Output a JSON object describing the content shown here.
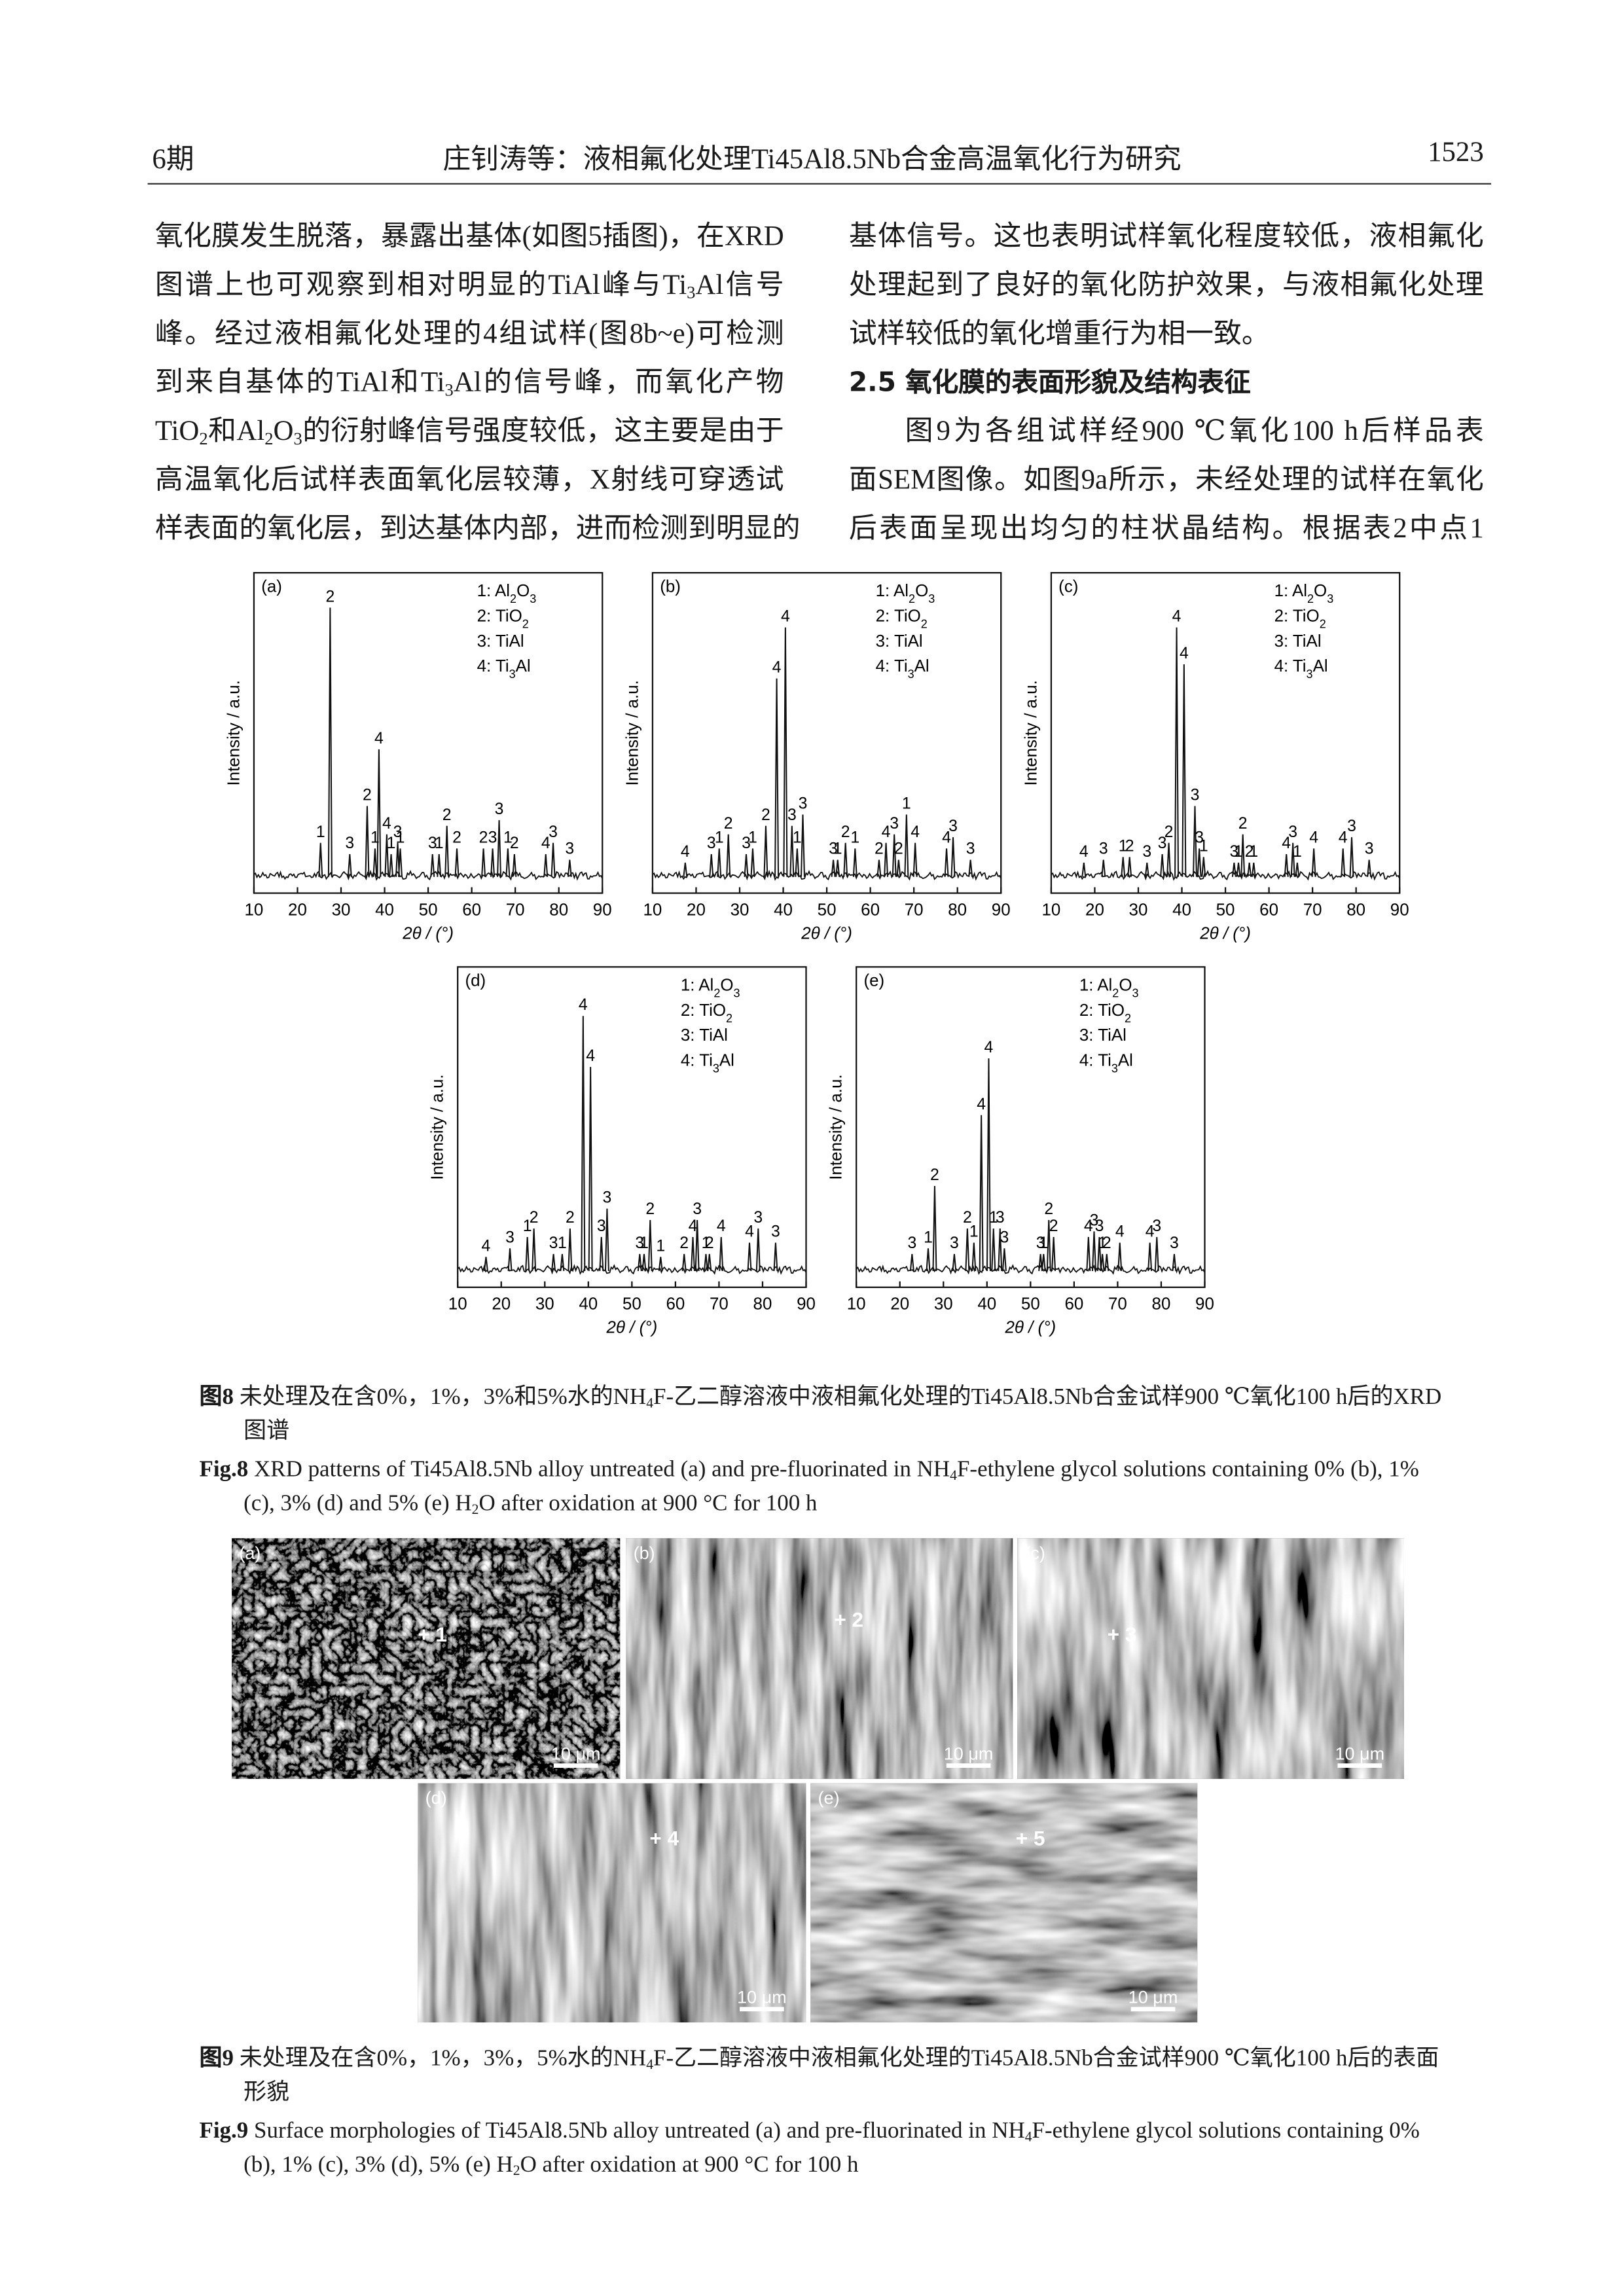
{
  "header": {
    "issue": "6期",
    "running_title": "庄钊涛等：液相氟化处理Ti45Al8.5Nb合金高温氧化行为研究",
    "page": "1523"
  },
  "body": {
    "left_lines": [
      "氧化膜发生脱落，暴露出基体(如图5插图)，在XRD",
      "图谱上也可观察到相对明显的TiAl峰与Ti3Al信号",
      "峰。经过液相氟化处理的4组试样(图8b~e)可检测",
      "到来自基体的TiAl和Ti3Al的信号峰，而氧化产物",
      "TiO2和Al2O3的衍射峰信号强度较低，这主要是由于",
      "高温氧化后试样表面氧化层较薄，X射线可穿透试",
      "样表面的氧化层，到达基体内部，进而检测到明显的"
    ],
    "right_lines_before": [
      "基体信号。这也表明试样氧化程度较低，液相氟化",
      "处理起到了良好的氧化防护效果，与液相氟化处理",
      "试样较低的氧化增重行为相一致。"
    ],
    "heading": "2.5 氧化膜的表面形貌及结构表征",
    "right_lines_after": [
      "图9为各组试样经900 ℃氧化100 h后样品表",
      "面SEM图像。如图9a所示，未经处理的试样在氧化",
      "后表面呈现出均匀的柱状晶结构。根据表2中点1"
    ]
  },
  "chart_data": [
    {
      "type": "line",
      "panel_label": "(a)",
      "legend": [
        "1: Al2O3",
        "2: TiO2",
        "3: TiAl",
        "4: Ti3Al"
      ],
      "ylabel": "Intensity / a.u.",
      "xlabel": "2θ / (°)",
      "xlim": [
        10,
        90
      ],
      "xticks": [
        10,
        20,
        30,
        40,
        50,
        60,
        70,
        80,
        90
      ],
      "ylim": [
        0,
        100
      ],
      "x": [
        25.3,
        27.5,
        32,
        36,
        37.8,
        38.7,
        40.5,
        41.5,
        43,
        43.6,
        51,
        52.5,
        54.3,
        56.6,
        62.7,
        64.8,
        66.3,
        68.3,
        69.8,
        77,
        78.7,
        82.5
      ],
      "values": [
        12,
        95,
        8,
        25,
        10,
        45,
        15,
        8,
        12,
        10,
        8,
        8,
        18,
        10,
        10,
        10,
        20,
        10,
        8,
        8,
        12,
        6
      ],
      "peak_labels": [
        "1",
        "2",
        "3",
        "2",
        "1",
        "4",
        "4",
        "1",
        "3",
        "1",
        "3",
        "1",
        "2",
        "2",
        "2",
        "3",
        "3",
        "1",
        "2",
        "4",
        "3",
        "3"
      ]
    },
    {
      "type": "line",
      "panel_label": "(b)",
      "legend": [
        "1: Al2O3",
        "2: TiO2",
        "3: TiAl",
        "4: Ti3Al"
      ],
      "ylabel": "Intensity / a.u.",
      "xlabel": "2θ / (°)",
      "xlim": [
        10,
        90
      ],
      "xticks": [
        10,
        20,
        30,
        40,
        50,
        60,
        70,
        80,
        90
      ],
      "ylim": [
        0,
        100
      ],
      "x": [
        17.5,
        23.5,
        25.3,
        27.4,
        31.5,
        33,
        36,
        38.5,
        40.5,
        42,
        43.2,
        44.5,
        51.5,
        52.5,
        54.3,
        56.5,
        62,
        63.6,
        65.5,
        66.5,
        68.3,
        70.3,
        77.5,
        79,
        83
      ],
      "values": [
        5,
        8,
        10,
        15,
        8,
        10,
        18,
        70,
        88,
        18,
        10,
        22,
        6,
        6,
        12,
        10,
        6,
        12,
        15,
        6,
        22,
        12,
        10,
        14,
        6
      ],
      "peak_labels": [
        "4",
        "3",
        "1",
        "2",
        "3",
        "1",
        "2",
        "4",
        "4",
        "3",
        "1",
        "3",
        "3",
        "1",
        "2",
        "1",
        "2",
        "4",
        "3",
        "2",
        "1",
        "4",
        "4",
        "3",
        "3"
      ]
    },
    {
      "type": "line",
      "panel_label": "(c)",
      "legend": [
        "1: Al2O3",
        "2: TiO2",
        "3: TiAl",
        "4: Ti3Al"
      ],
      "ylabel": "Intensity / a.u.",
      "xlabel": "2θ / (°)",
      "xlim": [
        10,
        90
      ],
      "xticks": [
        10,
        20,
        30,
        40,
        50,
        60,
        70,
        80,
        90
      ],
      "ylim": [
        0,
        100
      ],
      "x": [
        17.5,
        22,
        26.5,
        28,
        32,
        35.5,
        37,
        38.8,
        40.5,
        43,
        44,
        45,
        52,
        53,
        54,
        55.5,
        56.5,
        64,
        65.5,
        66.5,
        70.3,
        77,
        79,
        83
      ],
      "values": [
        5,
        6,
        7,
        7,
        5,
        8,
        12,
        88,
        75,
        25,
        10,
        7,
        5,
        5,
        15,
        5,
        5,
        8,
        12,
        5,
        10,
        10,
        14,
        6
      ],
      "peak_labels": [
        "4",
        "3",
        "1",
        "2",
        "3",
        "3",
        "2",
        "4",
        "4",
        "3",
        "3",
        "1",
        "3",
        "1",
        "2",
        "2",
        "1",
        "4",
        "3",
        "1",
        "4",
        "4",
        "3",
        "3"
      ]
    },
    {
      "type": "line",
      "panel_label": "(d)",
      "legend": [
        "1: Al2O3",
        "2: TiO2",
        "3: TiAl",
        "4: Ti3Al"
      ],
      "ylabel": "Intensity / a.u.",
      "xlabel": "2θ / (°)",
      "xlim": [
        10,
        90
      ],
      "xticks": [
        10,
        20,
        30,
        40,
        50,
        60,
        70,
        80,
        90
      ],
      "ylim": [
        0,
        100
      ],
      "x": [
        16.5,
        22,
        26,
        27.5,
        32,
        34,
        35.8,
        38.8,
        40.5,
        43,
        44.3,
        51.8,
        52.8,
        54.2,
        56.6,
        62,
        64,
        65,
        67,
        67.8,
        70.5,
        77,
        79,
        83
      ],
      "values": [
        5,
        8,
        12,
        15,
        6,
        6,
        15,
        90,
        72,
        12,
        22,
        6,
        6,
        18,
        5,
        6,
        12,
        18,
        6,
        6,
        12,
        10,
        15,
        10
      ],
      "peak_labels": [
        "4",
        "3",
        "1",
        "2",
        "3",
        "1",
        "2",
        "4",
        "4",
        "3",
        "3",
        "3",
        "1",
        "2",
        "1",
        "2",
        "4",
        "3",
        "1",
        "2",
        "4",
        "4",
        "3",
        "3"
      ]
    },
    {
      "type": "line",
      "panel_label": "(e)",
      "legend": [
        "1: Al2O3",
        "2: TiO2",
        "3: TiAl",
        "4: Ti3Al"
      ],
      "ylabel": "Intensity / a.u.",
      "xlabel": "2θ / (°)",
      "xlim": [
        10,
        90
      ],
      "xticks": [
        10,
        20,
        30,
        40,
        50,
        60,
        70,
        80,
        90
      ],
      "ylim": [
        0,
        100
      ],
      "x": [
        22.8,
        26.5,
        28,
        32.5,
        35.5,
        37,
        38.7,
        40.4,
        41.5,
        43,
        44,
        52.3,
        53,
        54.2,
        55.3,
        63.3,
        64.6,
        65.8,
        66.5,
        67.5,
        70.5,
        77.4,
        79,
        83
      ],
      "values": [
        6,
        8,
        30,
        6,
        15,
        10,
        55,
        75,
        15,
        15,
        8,
        6,
        6,
        18,
        12,
        12,
        14,
        12,
        6,
        6,
        10,
        10,
        12,
        6
      ],
      "peak_labels": [
        "3",
        "1",
        "2",
        "3",
        "2",
        "1",
        "4",
        "4",
        "1",
        "3",
        "3",
        "3",
        "1",
        "2",
        "2",
        "4",
        "3",
        "3",
        "1",
        "2",
        "4",
        "4",
        "3",
        "3"
      ]
    }
  ],
  "figure8": {
    "cn_label": "图8",
    "cn_caption": "未处理及在含0%，1%，3%和5%水的NH4F-乙二醇溶液中液相氟化处理的Ti45Al8.5Nb合金试样900 ℃氧化100 h后的XRD图谱",
    "en_label": "Fig.8",
    "en_caption": "XRD patterns of Ti45Al8.5Nb alloy untreated (a) and pre-fluorinated in NH4F-ethylene glycol solutions containing 0% (b), 1% (c), 3% (d) and 5% (e) H2O after oxidation at 900 °C for 100 h"
  },
  "figure9": {
    "panels": [
      {
        "label": "(a)",
        "point": "+ 1",
        "scale": "10 μm"
      },
      {
        "label": "(b)",
        "point": "+ 2",
        "scale": "10 μm"
      },
      {
        "label": "(c)",
        "point": "+ 3",
        "scale": "10 μm"
      },
      {
        "label": "(d)",
        "point": "+ 4",
        "scale": "10 μm"
      },
      {
        "label": "(e)",
        "point": "+ 5",
        "scale": "10 μm"
      }
    ],
    "cn_label": "图9",
    "cn_caption": "未处理及在含0%，1%，3%，5%水的NH4F-乙二醇溶液中液相氟化处理的Ti45Al8.5Nb合金试样900 ℃氧化100 h后的表面形貌",
    "en_label": "Fig.9",
    "en_caption": "Surface morphologies of Ti45Al8.5Nb alloy untreated (a) and pre-fluorinated in NH4F-ethylene glycol solutions containing 0% (b), 1% (c), 3% (d), 5% (e) H2O after oxidation at 900 °C for 100 h"
  }
}
